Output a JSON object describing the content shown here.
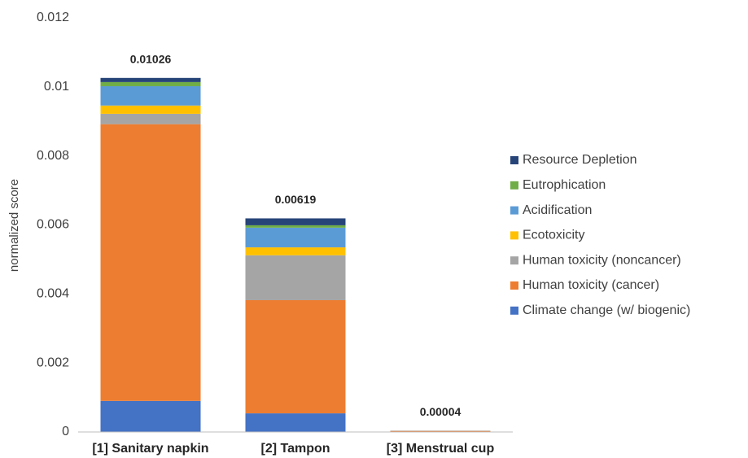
{
  "chart_data": {
    "type": "stacked_bar",
    "y_label": "normalized score",
    "categories": [
      "[1] Sanitary napkin",
      "[2] Tampon",
      "[3] Menstrual cup"
    ],
    "series": [
      {
        "name": "Climate change (w/ biogenic)",
        "color": "#4472c4",
        "values": [
          0.0009,
          0.00054,
          1e-05
        ]
      },
      {
        "name": "Human toxicity (cancer)",
        "color": "#ed7d31",
        "values": [
          0.00802,
          0.00328,
          2e-05
        ]
      },
      {
        "name": "Human toxicity (noncancer)",
        "color": "#a5a5a5",
        "values": [
          0.0003,
          0.0013,
          1e-05
        ]
      },
      {
        "name": "Ecotoxicity",
        "color": "#ffc000",
        "values": [
          0.00024,
          0.00023,
          0
        ]
      },
      {
        "name": "Acidification",
        "color": "#5b9bd5",
        "values": [
          0.00056,
          0.00057,
          0
        ]
      },
      {
        "name": "Eutrophication",
        "color": "#70ad47",
        "values": [
          0.00012,
          7e-05,
          0
        ]
      },
      {
        "name": "Resource Depletion",
        "color": "#264478",
        "values": [
          0.00012,
          0.0002,
          0
        ]
      }
    ],
    "totals": [
      0.01026,
      0.00619,
      4e-05
    ],
    "ylim": [
      0,
      0.012
    ],
    "yticks": [
      0,
      0.002,
      0.004,
      0.006,
      0.008,
      0.01,
      0.012
    ],
    "grid": false,
    "legend": "right"
  }
}
